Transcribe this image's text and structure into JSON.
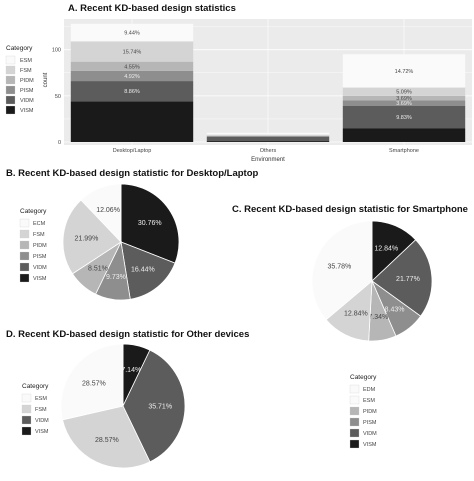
{
  "colors": {
    "ESM": "#fafafa",
    "TSM": "#e6e6e6",
    "FSM": "#d4d4d4",
    "PIDM": "#b6b6b6",
    "FIDM": "#a2a2a2",
    "PISM": "#8e8e8e",
    "VIDM": "#5c5c5c",
    "VDM": "#3a3a3a",
    "VISM": "#1a1a1a",
    "panel": "#ebebeb",
    "grid": "#ffffff"
  },
  "chart_data": [
    {
      "id": "A",
      "type": "bar",
      "title": "A. Recent KD-based design statistics",
      "xlabel": "Environment",
      "ylabel": "count",
      "ylim": [
        0,
        130
      ],
      "yticks": [
        0,
        50,
        100
      ],
      "categories": [
        "Desktop/Laptop",
        "Others",
        "Smartphone"
      ],
      "legend_title": "Category",
      "legend_items": [
        "ESM",
        "FSM",
        "PIDM",
        "PISM",
        "VIDM",
        "VISM"
      ],
      "stacks": [
        {
          "category": "Desktop/Laptop",
          "segments": [
            {
              "key": "VISM",
              "value": 44,
              "label": ""
            },
            {
              "key": "VIDM",
              "value": 22,
              "label": "8.86%"
            },
            {
              "key": "PISM",
              "value": 11,
              "label": "4.92%"
            },
            {
              "key": "PIDM",
              "value": 10,
              "label": "4.55%"
            },
            {
              "key": "FSM",
              "value": 22,
              "label": "15.74%"
            },
            {
              "key": "ESM",
              "value": 19,
              "label": "9.44%"
            }
          ]
        },
        {
          "category": "Others",
          "segments": [
            {
              "key": "VISM",
              "value": 1,
              "label": ""
            },
            {
              "key": "VIDM",
              "value": 5,
              "label": ""
            },
            {
              "key": "FSM",
              "value": 2,
              "label": ""
            },
            {
              "key": "ESM",
              "value": 2,
              "label": ""
            }
          ]
        },
        {
          "category": "Smartphone",
          "segments": [
            {
              "key": "VISM",
              "value": 15,
              "label": ""
            },
            {
              "key": "VIDM",
              "value": 24,
              "label": "9.83%"
            },
            {
              "key": "PISM",
              "value": 6,
              "label": "3.69%"
            },
            {
              "key": "PIDM",
              "value": 5,
              "label": "3.69%"
            },
            {
              "key": "FSM",
              "value": 9,
              "label": "5.09%"
            },
            {
              "key": "ESM",
              "value": 36,
              "label": "14.72%"
            }
          ]
        }
      ]
    },
    {
      "id": "B",
      "type": "pie",
      "title": "B. Recent KD-based design statistic for Desktop/Laptop",
      "legend_title": "Category",
      "legend_items": [
        "ECM",
        "FSM",
        "PIDM",
        "PISM",
        "VIDM",
        "VISM"
      ],
      "slices": [
        {
          "key": "VISM",
          "value": 30.76,
          "label": "30.76%"
        },
        {
          "key": "VIDM",
          "value": 16.44,
          "label": "16.44%"
        },
        {
          "key": "PISM",
          "value": 9.73,
          "label": "9.73%"
        },
        {
          "key": "PIDM",
          "value": 8.51,
          "label": "8.51%"
        },
        {
          "key": "FSM",
          "value": 21.99,
          "label": "21.99%"
        },
        {
          "key": "ESM",
          "value": 12.06,
          "label": "12.06%"
        }
      ]
    },
    {
      "id": "C",
      "type": "pie",
      "title": "C. Recent KD-based design statistic for Smartphone",
      "legend_title": "Category",
      "legend_items": [
        "EDM",
        "ESM",
        "PIDM",
        "PISM",
        "VIDM",
        "VISM"
      ],
      "slices": [
        {
          "key": "VISM",
          "value": 12.84,
          "label": "12.84%"
        },
        {
          "key": "VIDM",
          "value": 21.77,
          "label": "21.77%"
        },
        {
          "key": "PISM",
          "value": 8.43,
          "label": "8.43%"
        },
        {
          "key": "PIDM",
          "value": 7.34,
          "label": "7.34%"
        },
        {
          "key": "FSM",
          "value": 12.84,
          "label": "12.84%"
        },
        {
          "key": "ESM",
          "value": 35.78,
          "label": "35.78%"
        }
      ]
    },
    {
      "id": "D",
      "type": "pie",
      "title": "D. Recent KD-based design statistic for Other devices",
      "legend_title": "Category",
      "legend_items": [
        "ESM",
        "FSM",
        "VIDM",
        "VISM"
      ],
      "slices": [
        {
          "key": "VISM",
          "value": 7.14,
          "label": "7.14%"
        },
        {
          "key": "VIDM",
          "value": 35.71,
          "label": "35.71%"
        },
        {
          "key": "FSM",
          "value": 28.57,
          "label": "28.57%"
        },
        {
          "key": "ESM",
          "value": 28.57,
          "label": "28.57%"
        }
      ]
    }
  ]
}
